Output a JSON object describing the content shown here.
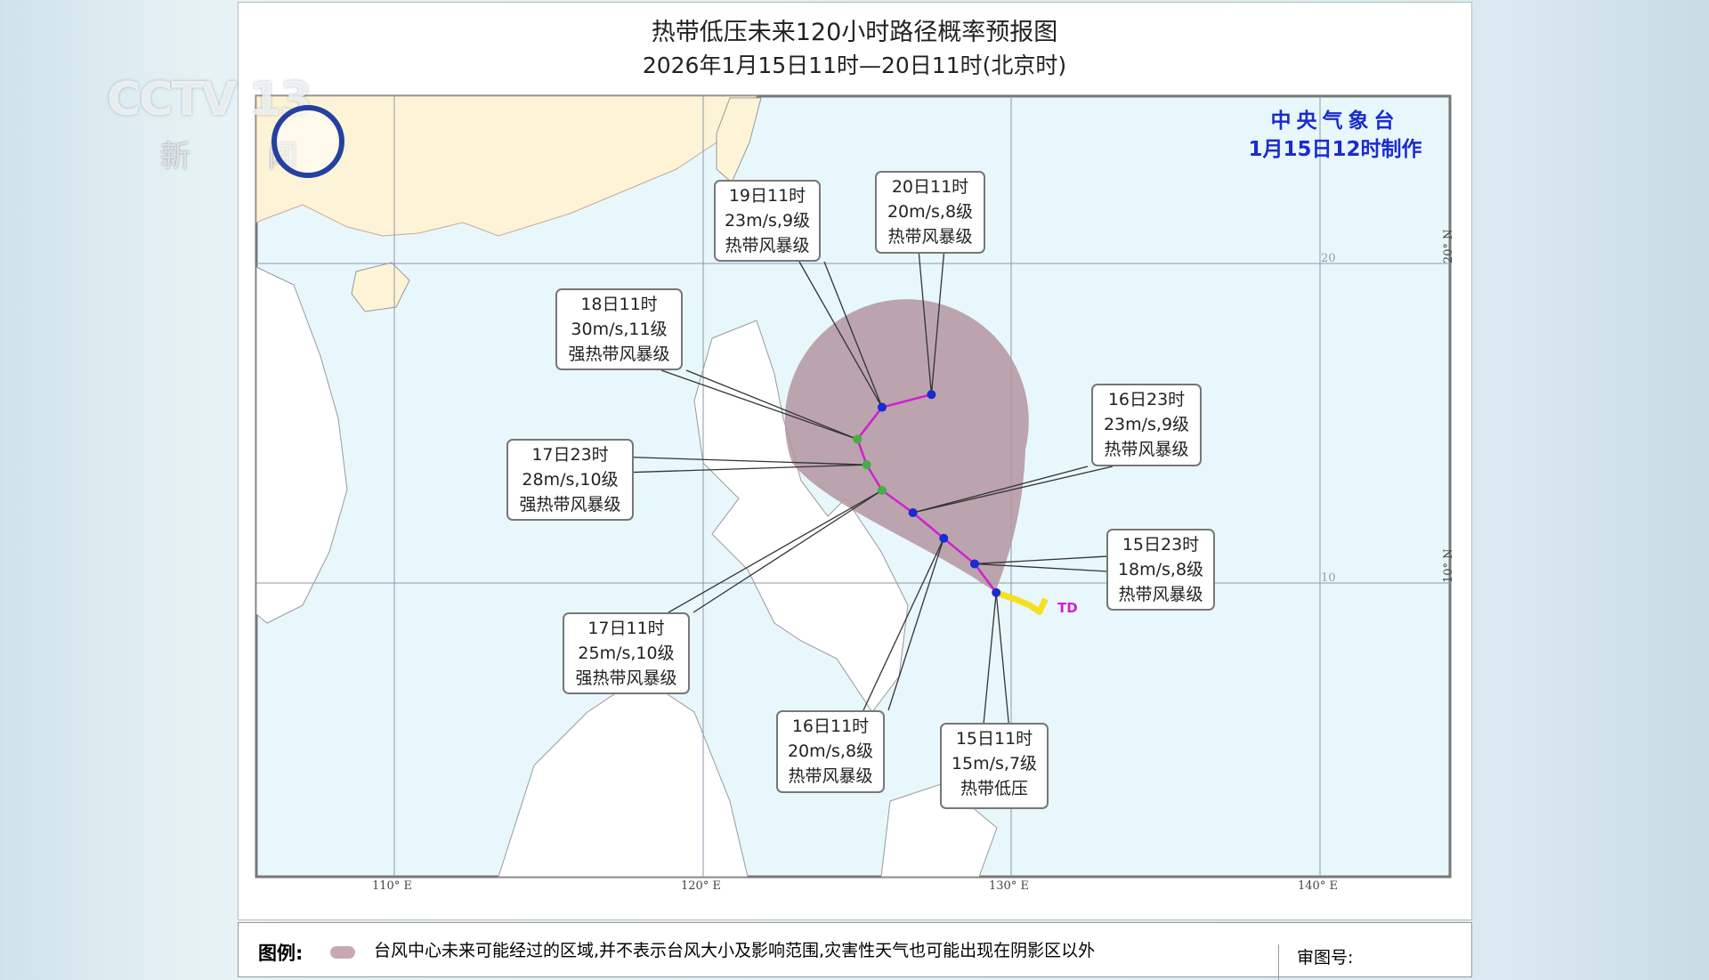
{
  "title": "热带低压未来120小时路径概率预报图",
  "subtitle": "2026年1月15日11时—20日11时(北京时)",
  "agency": "中央气象台",
  "issued": "1月15日12时制作",
  "logo": {
    "channel": "CCTV 13",
    "name": "新 闻"
  },
  "axes": {
    "lon_ticks": [
      "110° E",
      "120° E",
      "130° E",
      "140° E"
    ],
    "lat_ticks": [
      "20° N",
      "10° N"
    ],
    "lat_inner": [
      "20",
      "10"
    ]
  },
  "colors": {
    "cone": "#b395a0",
    "track": "#d020d0",
    "past_track": "#f5e020",
    "point_ts": "#1a2bd0",
    "point_sts": "#44b044",
    "land_china": "#fdf3d6",
    "sea": "#e8f7fb"
  },
  "storm_label": "TD",
  "past_track": [
    [
      129.5,
      9.7
    ],
    [
      130.1,
      9.5
    ],
    [
      130.6,
      9.3
    ],
    [
      130.9,
      9.1
    ],
    [
      131.1,
      9.5
    ]
  ],
  "forecast": [
    {
      "time": "15日11时",
      "wind": "15m/s,7级",
      "level": "热带低压",
      "lon": 129.5,
      "lat": 9.7
    },
    {
      "time": "15日23时",
      "wind": "18m/s,8级",
      "level": "热带风暴级",
      "lon": 128.8,
      "lat": 10.6
    },
    {
      "time": "16日11时",
      "wind": "20m/s,8级",
      "level": "热带风暴级",
      "lon": 127.8,
      "lat": 11.4
    },
    {
      "time": "16日23时",
      "wind": "23m/s,9级",
      "level": "热带风暴级",
      "lon": 126.8,
      "lat": 12.2
    },
    {
      "time": "17日11时",
      "wind": "25m/s,10级",
      "level": "强热带风暴级",
      "lon": 125.8,
      "lat": 12.9
    },
    {
      "time": "17日23时",
      "wind": "28m/s,10级",
      "level": "强热带风暴级",
      "lon": 125.3,
      "lat": 13.7
    },
    {
      "time": "18日11时",
      "wind": "30m/s,11级",
      "level": "强热带风暴级",
      "lon": 125.0,
      "lat": 14.5
    },
    {
      "time": "19日11时",
      "wind": "23m/s,9级",
      "level": "热带风暴级",
      "lon": 125.8,
      "lat": 15.5
    },
    {
      "time": "20日11时",
      "wind": "20m/s,8级",
      "level": "热带风暴级",
      "lon": 127.4,
      "lat": 15.9
    }
  ],
  "legend": {
    "label": "图例:",
    "text": "台风中心未来可能经过的区域,并不表示台风大小及影响范围,灾害性天气也可能出现在阴影区以外",
    "review": "审图号:"
  }
}
